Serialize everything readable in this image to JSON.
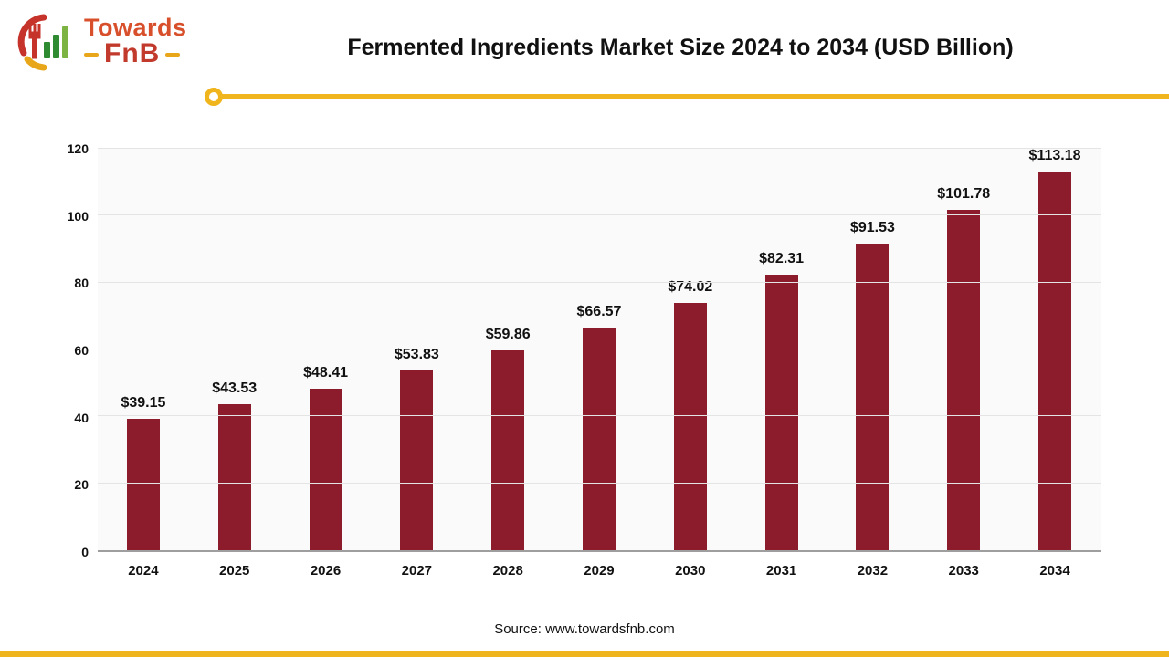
{
  "logo": {
    "line1": "Towards",
    "line2": "FnB"
  },
  "header": {
    "title": "Fermented Ingredients Market Size 2024 to 2034 (USD Billion)"
  },
  "footer": {
    "source": "Source: www.towardsfnb.com"
  },
  "colors": {
    "bar": "#8c1b2c",
    "accent_gold": "#f0b41c",
    "grid": "#e4e4e4",
    "plot_bg": "#fafafa"
  },
  "chart_data": {
    "type": "bar",
    "title": "Fermented Ingredients Market Size 2024 to 2034 (USD Billion)",
    "categories": [
      "2024",
      "2025",
      "2026",
      "2027",
      "2028",
      "2029",
      "2030",
      "2031",
      "2032",
      "2033",
      "2034"
    ],
    "values": [
      39.15,
      43.53,
      48.41,
      53.83,
      59.86,
      66.57,
      74.02,
      82.31,
      91.53,
      101.78,
      113.18
    ],
    "labels": [
      "$39.15",
      "$43.53",
      "$48.41",
      "$53.83",
      "$59.86",
      "$66.57",
      "$74.02",
      "$82.31",
      "$91.53",
      "$101.78",
      "$113.18"
    ],
    "xlabel": "",
    "ylabel": "",
    "ylim": [
      0,
      120
    ],
    "yticks": [
      0,
      20,
      40,
      60,
      80,
      100,
      120
    ],
    "grid": true,
    "legend": "none",
    "bar_color": "#8c1b2c"
  }
}
